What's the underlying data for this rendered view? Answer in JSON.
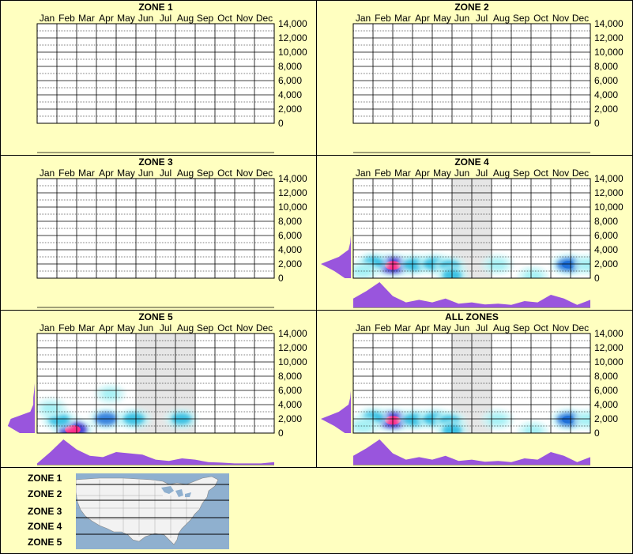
{
  "colors": {
    "background": "#ffffc0",
    "profile": "#9955dd",
    "grid": "#000000",
    "shade": "#e6e6e6"
  },
  "chart_data": [
    {
      "type": "heatmap",
      "title": "ZONE 1",
      "months": [
        "Jan",
        "Feb",
        "Mar",
        "Apr",
        "May",
        "Jun",
        "Jul",
        "Aug",
        "Sep",
        "Oct",
        "Nov",
        "Dec"
      ],
      "yticks": [
        "14,000",
        "12,000",
        "10,000",
        "8,000",
        "6,000",
        "4,000",
        "2,000",
        "0"
      ],
      "ylim": [
        0,
        14000
      ],
      "shaded_months": [],
      "hotspots": [],
      "month_profile": [],
      "elev_profile": []
    },
    {
      "type": "heatmap",
      "title": "ZONE 2",
      "months": [
        "Jan",
        "Feb",
        "Mar",
        "Apr",
        "May",
        "Jun",
        "Jul",
        "Aug",
        "Sep",
        "Oct",
        "Nov",
        "Dec"
      ],
      "yticks": [
        "14,000",
        "12,000",
        "10,000",
        "8,000",
        "6,000",
        "4,000",
        "2,000",
        "0"
      ],
      "ylim": [
        0,
        14000
      ],
      "shaded_months": [],
      "hotspots": [],
      "month_profile": [],
      "elev_profile": []
    },
    {
      "type": "heatmap",
      "title": "ZONE 3",
      "months": [
        "Jan",
        "Feb",
        "Mar",
        "Apr",
        "May",
        "Jun",
        "Jul",
        "Aug",
        "Sep",
        "Oct",
        "Nov",
        "Dec"
      ],
      "yticks": [
        "14,000",
        "12,000",
        "10,000",
        "8,000",
        "6,000",
        "4,000",
        "2,000",
        "0"
      ],
      "ylim": [
        0,
        14000
      ],
      "shaded_months": [],
      "hotspots": [],
      "month_profile": [],
      "elev_profile": []
    },
    {
      "type": "heatmap",
      "title": "ZONE 4",
      "months": [
        "Jan",
        "Feb",
        "Mar",
        "Apr",
        "May",
        "Jun",
        "Jul",
        "Aug",
        "Sep",
        "Oct",
        "Nov",
        "Dec"
      ],
      "yticks": [
        "14,000",
        "12,000",
        "10,000",
        "8,000",
        "6,000",
        "4,000",
        "2,000",
        "0"
      ],
      "ylim": [
        0,
        14000
      ],
      "shaded_months": [
        6,
        7
      ],
      "hotspots": [
        {
          "month": 2.5,
          "elev": 1800,
          "v": 1.0
        },
        {
          "month": 1.5,
          "elev": 2200,
          "v": 0.35
        },
        {
          "month": 3.6,
          "elev": 1900,
          "v": 0.45
        },
        {
          "month": 4.6,
          "elev": 2000,
          "v": 0.45
        },
        {
          "month": 5.4,
          "elev": 1700,
          "v": 0.3
        },
        {
          "month": 5.5,
          "elev": 400,
          "v": 0.3
        },
        {
          "month": 7.8,
          "elev": 1900,
          "v": 0.25
        },
        {
          "month": 9.6,
          "elev": 300,
          "v": 0.2
        },
        {
          "month": 11.4,
          "elev": 1900,
          "v": 0.65
        },
        {
          "month": 12.4,
          "elev": 1900,
          "v": 0.25
        },
        {
          "month": 1.0,
          "elev": 1000,
          "v": 0.25
        }
      ],
      "month_profile": [
        0.35,
        0.65,
        1.0,
        0.45,
        0.2,
        0.3,
        0.2,
        0.35,
        0.15,
        0.2,
        0.12,
        0.15,
        0.1,
        0.25,
        0.2,
        0.5,
        0.35,
        0.1,
        0.3
      ],
      "elev_profile": [
        0.2,
        0.55,
        1.0,
        0.4,
        0.08,
        0.02,
        0,
        0,
        0,
        0,
        0,
        0,
        0,
        0,
        0
      ]
    },
    {
      "type": "heatmap",
      "title": "ZONE 5",
      "months": [
        "Jan",
        "Feb",
        "Mar",
        "Apr",
        "May",
        "Jun",
        "Jul",
        "Aug",
        "Sep",
        "Oct",
        "Nov",
        "Dec"
      ],
      "yticks": [
        "14,000",
        "12,000",
        "10,000",
        "8,000",
        "6,000",
        "4,000",
        "2,000",
        "0"
      ],
      "ylim": [
        0,
        14000
      ],
      "shaded_months": [
        6,
        8
      ],
      "hotspots": [
        {
          "month": 2.3,
          "elev": 500,
          "v": 1.0
        },
        {
          "month": 1.6,
          "elev": 1900,
          "v": 0.45
        },
        {
          "month": 4.0,
          "elev": 2000,
          "v": 0.55
        },
        {
          "month": 5.4,
          "elev": 2000,
          "v": 0.45
        },
        {
          "month": 7.8,
          "elev": 2000,
          "v": 0.35
        },
        {
          "month": 4.2,
          "elev": 5500,
          "v": 0.08
        },
        {
          "month": 1.2,
          "elev": 3500,
          "v": 0.2
        }
      ],
      "month_profile": [
        0.05,
        0.5,
        1.0,
        0.6,
        0.35,
        0.3,
        0.5,
        0.45,
        0.4,
        0.2,
        0.15,
        0.25,
        0.2,
        0.1,
        0.08,
        0.05,
        0.05,
        0.05,
        0.1
      ],
      "elev_profile": [
        0.5,
        0.9,
        0.8,
        0.15,
        0.05,
        0.05,
        0.02,
        0,
        0,
        0,
        0,
        0,
        0,
        0,
        0
      ]
    },
    {
      "type": "heatmap",
      "title": "ALL ZONES",
      "months": [
        "Jan",
        "Feb",
        "Mar",
        "Apr",
        "May",
        "Jun",
        "Jul",
        "Aug",
        "Sep",
        "Oct",
        "Nov",
        "Dec"
      ],
      "yticks": [
        "14,000",
        "12,000",
        "10,000",
        "8,000",
        "6,000",
        "4,000",
        "2,000",
        "0"
      ],
      "ylim": [
        0,
        14000
      ],
      "shaded_months": [
        6,
        7
      ],
      "hotspots": [
        {
          "month": 2.5,
          "elev": 1800,
          "v": 1.0
        },
        {
          "month": 1.5,
          "elev": 2200,
          "v": 0.35
        },
        {
          "month": 3.6,
          "elev": 1900,
          "v": 0.45
        },
        {
          "month": 4.6,
          "elev": 2000,
          "v": 0.45
        },
        {
          "month": 5.4,
          "elev": 1700,
          "v": 0.3
        },
        {
          "month": 5.5,
          "elev": 400,
          "v": 0.3
        },
        {
          "month": 7.8,
          "elev": 1900,
          "v": 0.25
        },
        {
          "month": 9.6,
          "elev": 300,
          "v": 0.2
        },
        {
          "month": 11.4,
          "elev": 1900,
          "v": 0.65
        },
        {
          "month": 12.4,
          "elev": 1900,
          "v": 0.25
        },
        {
          "month": 1.0,
          "elev": 1000,
          "v": 0.25
        }
      ],
      "month_profile": [
        0.35,
        0.65,
        1.0,
        0.45,
        0.2,
        0.3,
        0.2,
        0.35,
        0.15,
        0.2,
        0.12,
        0.15,
        0.1,
        0.25,
        0.2,
        0.5,
        0.35,
        0.1,
        0.3
      ],
      "elev_profile": [
        0.2,
        0.55,
        1.0,
        0.4,
        0.08,
        0.02,
        0,
        0,
        0,
        0,
        0,
        0,
        0,
        0,
        0
      ]
    }
  ],
  "legend": {
    "zones": [
      "ZONE 1",
      "ZONE 2",
      "ZONE 3",
      "ZONE 4",
      "ZONE 5"
    ]
  }
}
